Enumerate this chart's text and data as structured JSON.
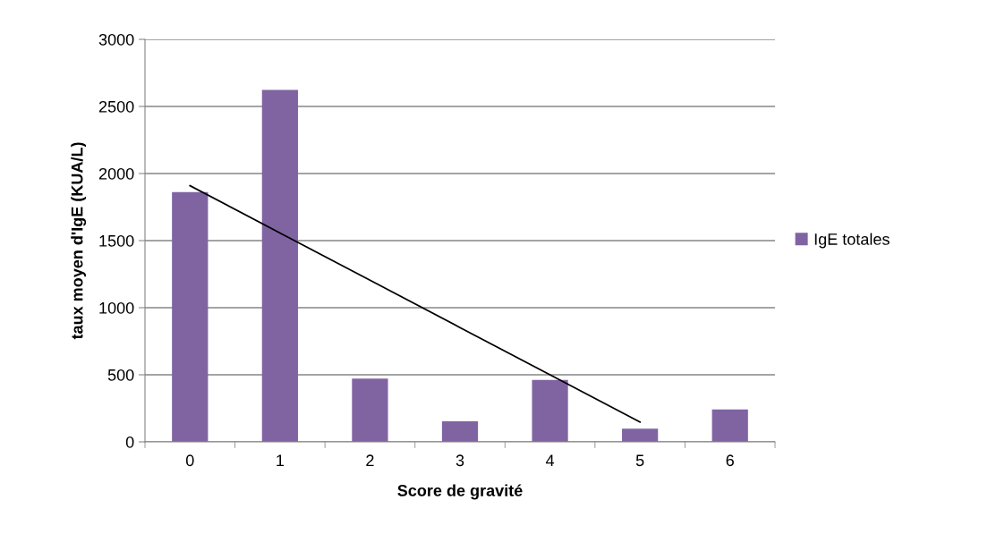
{
  "chart_data": {
    "type": "bar",
    "xlabel": "Score de gravité",
    "ylabel": "taux moyen d'IgE (KUA/L)",
    "categories": [
      "0",
      "1",
      "2",
      "3",
      "4",
      "5",
      "6"
    ],
    "series": [
      {
        "name": "IgE totales",
        "color": "#8064a2",
        "values": [
          1862,
          2623,
          472,
          153,
          462,
          98,
          241
        ]
      },
      {
        "type": "line",
        "color": "#000000",
        "values": [
          1909,
          1557,
          1205,
          852,
          500,
          148,
          null
        ]
      }
    ],
    "ylim": [
      0,
      3000
    ],
    "yticks": [
      0,
      500,
      1000,
      1500,
      2000,
      2500,
      3000
    ],
    "grid": "y",
    "legend": "right"
  }
}
